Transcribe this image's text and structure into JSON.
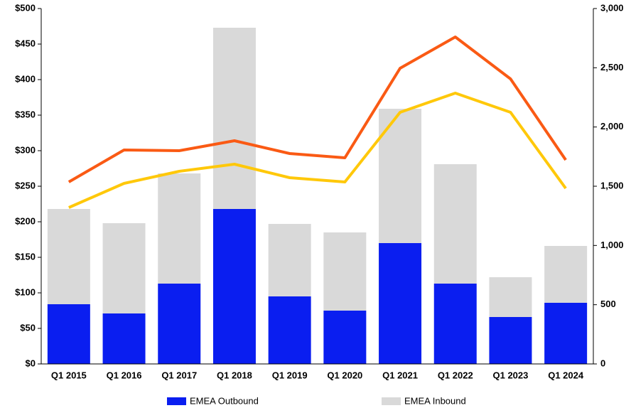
{
  "chart_data": {
    "type": "bar-line",
    "categories": [
      "Q1 2015",
      "Q1 2016",
      "Q1 2017",
      "Q1 2018",
      "Q1 2019",
      "Q1 2020",
      "Q1 2021",
      "Q1 2022",
      "Q1 2023",
      "Q1 2024"
    ],
    "series": [
      {
        "name": "EMEA Outbound",
        "type": "bar",
        "color": "#0a1ef0",
        "values": [
          84,
          71,
          113,
          218,
          95,
          75,
          170,
          113,
          66,
          86
        ]
      },
      {
        "name": "EMEA Inbound",
        "type": "bar",
        "color": "#d9d9d9",
        "values": [
          134,
          127,
          155,
          255,
          102,
          110,
          189,
          168,
          56,
          80
        ]
      },
      {
        "type": "line",
        "axis": "y2",
        "color": "#fa5a14",
        "values": [
          1536,
          1806,
          1800,
          1884,
          1776,
          1740,
          2496,
          2760,
          2406,
          1722
        ]
      },
      {
        "type": "line",
        "axis": "y2",
        "color": "#ffc80a",
        "values": [
          1320,
          1524,
          1626,
          1686,
          1572,
          1536,
          2124,
          2286,
          2124,
          1482
        ]
      }
    ],
    "stacked": true,
    "ylim": [
      0,
      500
    ],
    "yticks": [
      {
        "value": 0,
        "label": "$0"
      },
      {
        "value": 50,
        "label": "$50"
      },
      {
        "value": 100,
        "label": "$100"
      },
      {
        "value": 150,
        "label": "$150"
      },
      {
        "value": 200,
        "label": "$200"
      },
      {
        "value": 250,
        "label": "$250"
      },
      {
        "value": 300,
        "label": "$300"
      },
      {
        "value": 350,
        "label": "$350"
      },
      {
        "value": 400,
        "label": "$400"
      },
      {
        "value": 450,
        "label": "$450"
      },
      {
        "value": 500,
        "label": "$500"
      }
    ],
    "y2lim": [
      0,
      3000
    ],
    "y2ticks": [
      0,
      500,
      {
        "value": 1000,
        "label": "1,000"
      },
      {
        "value": 1500,
        "label": "1,500"
      },
      {
        "value": 2000,
        "label": "2,000"
      },
      {
        "value": 2500,
        "label": "2,500"
      },
      {
        "value": 3000,
        "label": "3,000"
      }
    ],
    "legend": "bottom"
  }
}
